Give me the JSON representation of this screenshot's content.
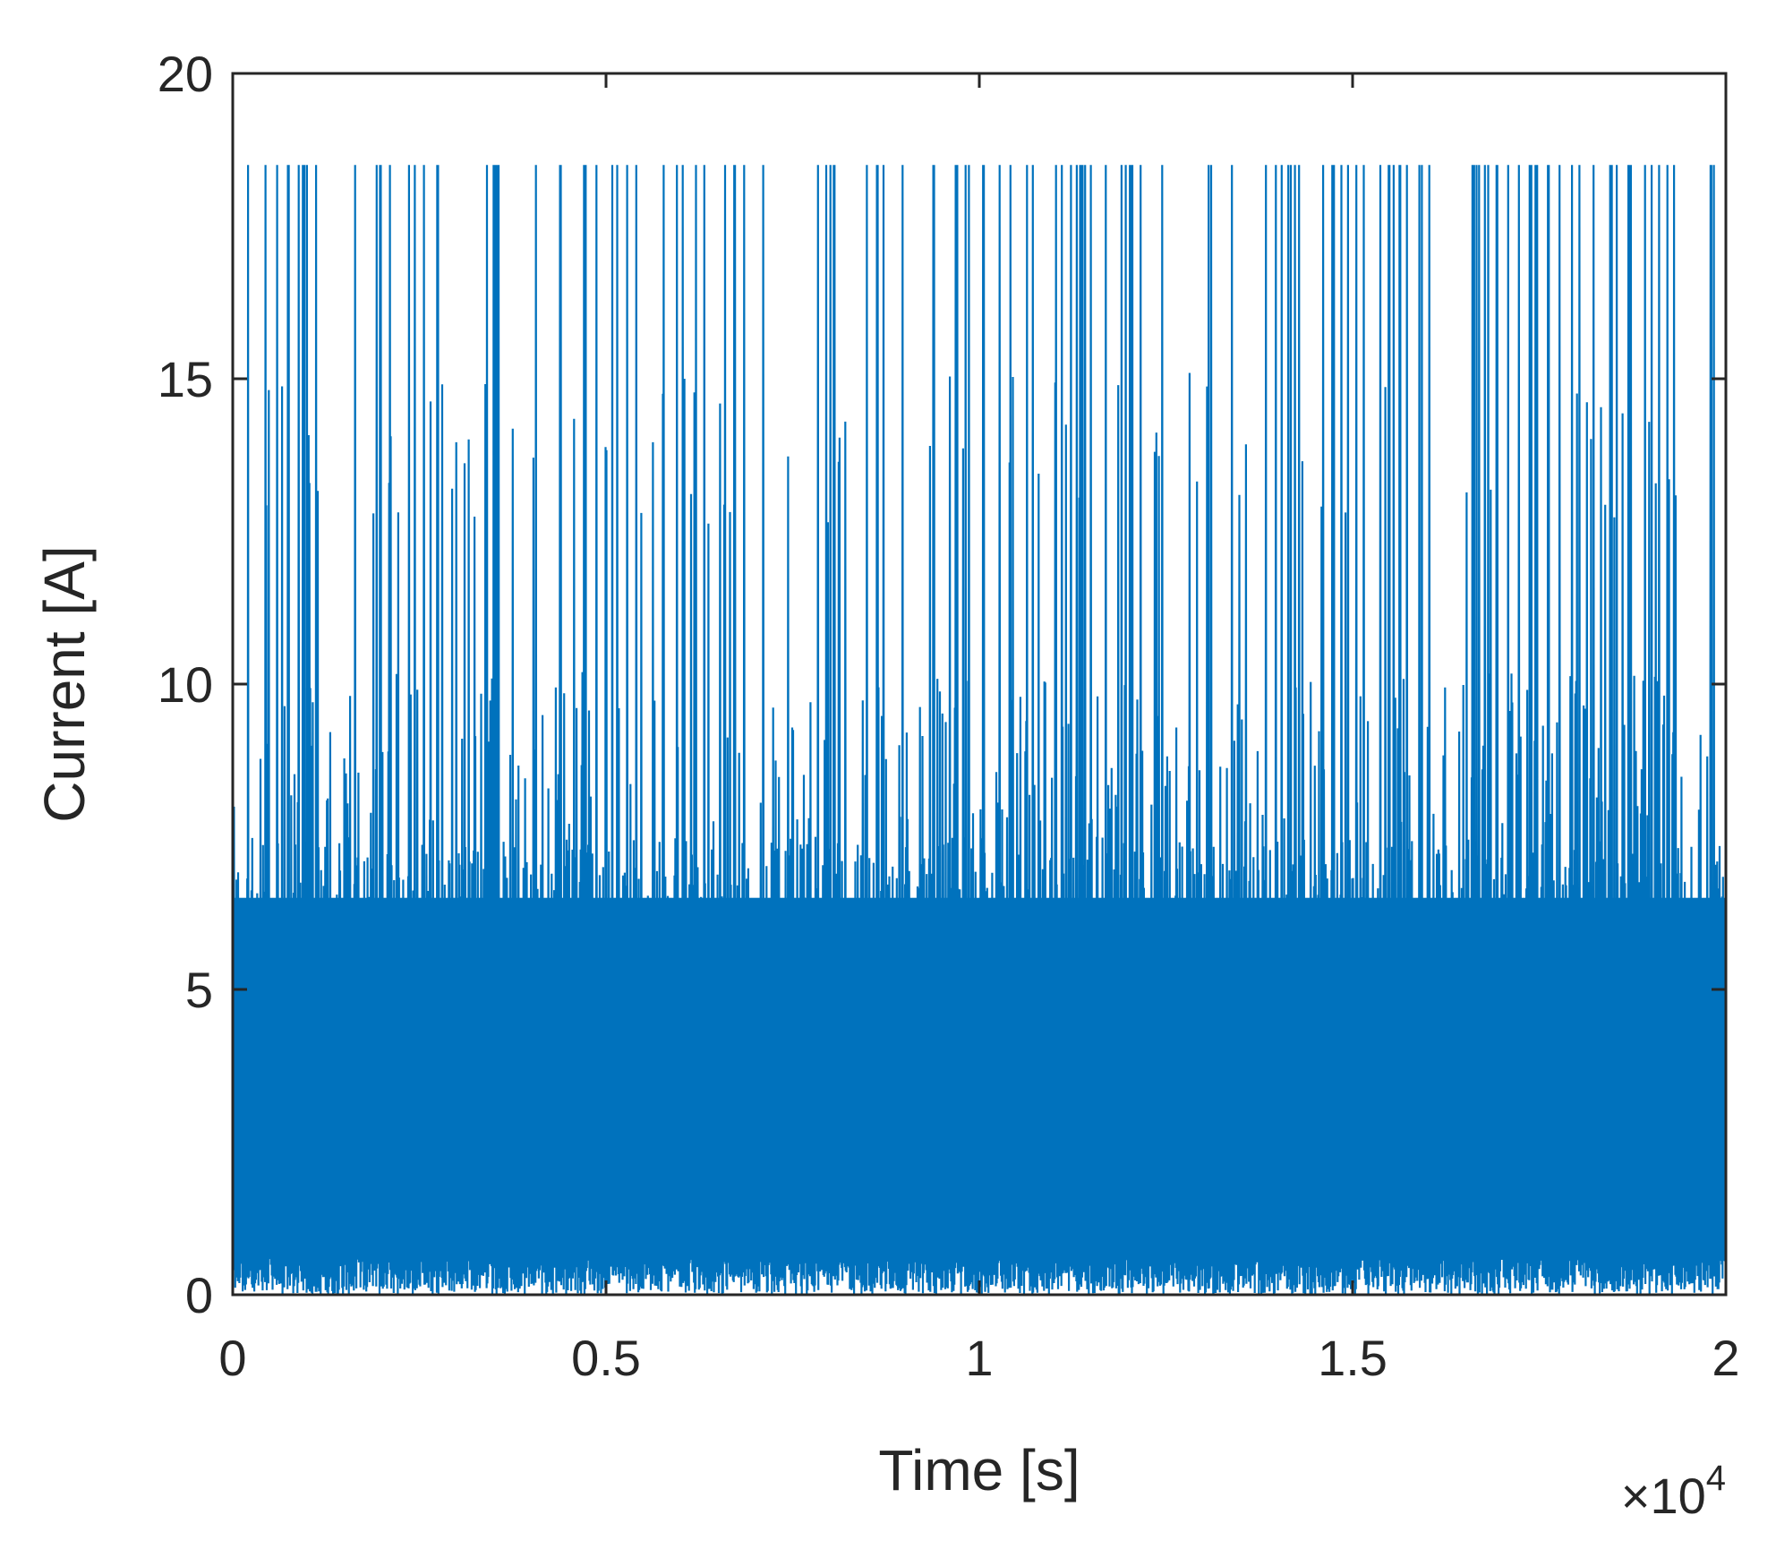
{
  "chart_data": {
    "type": "line",
    "xlabel": "Time [s]",
    "ylabel": "Current [A]",
    "xlim": [
      0,
      20000
    ],
    "ylim": [
      0,
      20
    ],
    "x_ticks": [
      0,
      5000,
      10000,
      15000,
      20000
    ],
    "x_tick_labels": [
      "0",
      "0.5",
      "1",
      "1.5",
      "2"
    ],
    "x_exponent_label": "×10",
    "x_exponent_power": "4",
    "y_ticks": [
      0,
      5,
      10,
      15,
      20
    ],
    "y_tick_labels": [
      "0",
      "5",
      "10",
      "15",
      "20"
    ],
    "grid": false,
    "legend": "none",
    "series": [
      {
        "color": "#0072BD",
        "envelope": {
          "baseline_min": 0,
          "dense_band_max": 7.5,
          "frequent_peak": 10.2,
          "intermediate_peak": 12.6,
          "max_peak": 18.5
        }
      }
    ]
  }
}
